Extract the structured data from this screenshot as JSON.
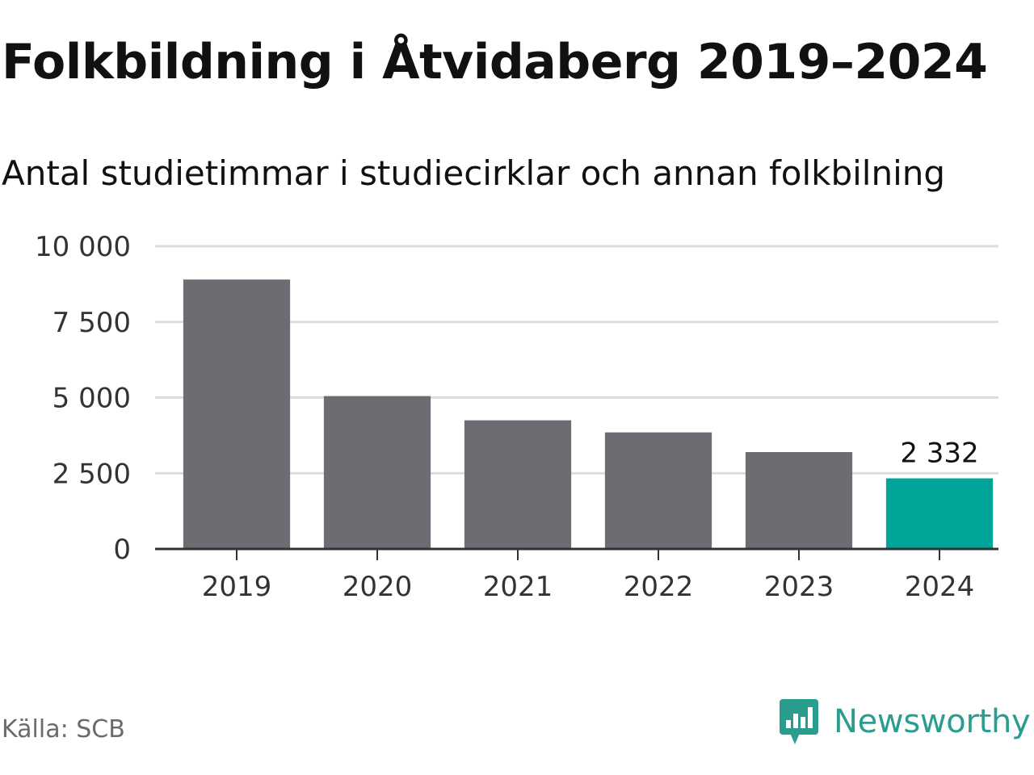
{
  "title": "Folkbildning i Åtvidaberg 2019–2024",
  "subtitle": "Antal studietimmar i studiecirklar och annan folkbilning",
  "source": "Källa: SCB",
  "brand": {
    "name": "Newsworthy",
    "icon": "newsworthy-logo-icon",
    "color": "#2a9d8f"
  },
  "chart_data": {
    "type": "bar",
    "categories": [
      "2019",
      "2020",
      "2021",
      "2022",
      "2023",
      "2024"
    ],
    "values": [
      8900,
      5050,
      4250,
      3850,
      3200,
      2332
    ],
    "ylim": [
      0,
      10000
    ],
    "yticks": [
      0,
      2500,
      5000,
      7500,
      10000
    ],
    "ytick_labels": [
      "0",
      "2 500",
      "5 000",
      "7 500",
      "10 000"
    ],
    "grid": true,
    "bar_color": "#6d6c72",
    "highlight_color": "#00a59a",
    "highlight_index": 5,
    "data_labels": [
      {
        "index": 5,
        "text": "2 332"
      }
    ]
  }
}
